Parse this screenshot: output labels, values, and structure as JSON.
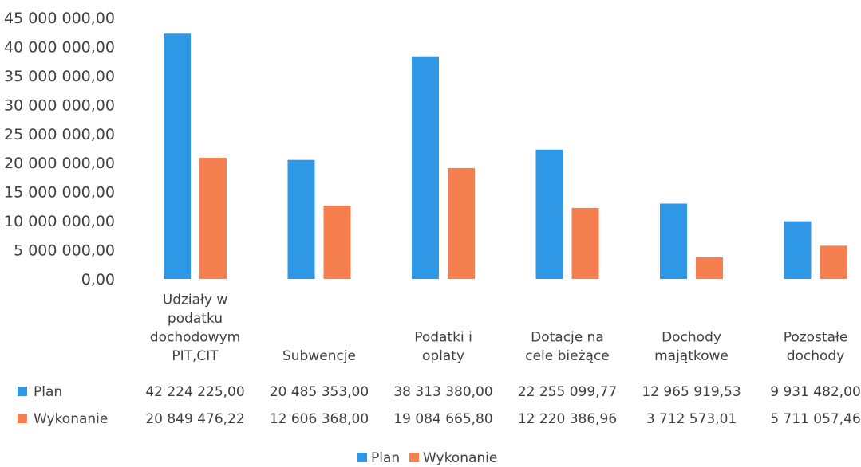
{
  "chart_data": {
    "type": "bar",
    "categories": [
      [
        "Udziały w",
        "podatku",
        "dochodowym",
        "PIT,CIT"
      ],
      [
        "Subwencje"
      ],
      [
        "Podatki i",
        "oplaty"
      ],
      [
        "Dotacje na",
        "cele bieżące"
      ],
      [
        "Dochody",
        "majątkowe"
      ],
      [
        "Pozostałe",
        "dochody"
      ]
    ],
    "series": [
      {
        "name": "Plan",
        "color": "#2e97e6",
        "values": [
          42224225.0,
          20485353.0,
          38313380.0,
          22255099.77,
          12965919.53,
          9931482.0
        ],
        "labels": [
          "42 224 225,00",
          "20 485 353,00",
          "38 313 380,00",
          "22 255 099,77",
          "12 965 919,53",
          "9 931 482,00"
        ]
      },
      {
        "name": "Wykonanie",
        "color": "#f57f4f",
        "values": [
          20849476.22,
          12606368.0,
          19084665.8,
          12220386.96,
          3712573.01,
          5711057.46
        ],
        "labels": [
          "20 849 476,22",
          "12 606 368,00",
          "19 084 665,80",
          "12 220 386,96",
          "3 712 573,01",
          "5 711 057,46"
        ]
      }
    ],
    "y_ticks": [
      "0,00",
      "5 000 000,00",
      "10 000 000,00",
      "15 000 000,00",
      "20 000 000,00",
      "25 000 000,00",
      "30 000 000,00",
      "35 000 000,00",
      "40 000 000,00",
      "45 000 000,00"
    ],
    "ylim": [
      0,
      45000000
    ],
    "grid": false,
    "legend": "bottom",
    "data_table": true
  }
}
